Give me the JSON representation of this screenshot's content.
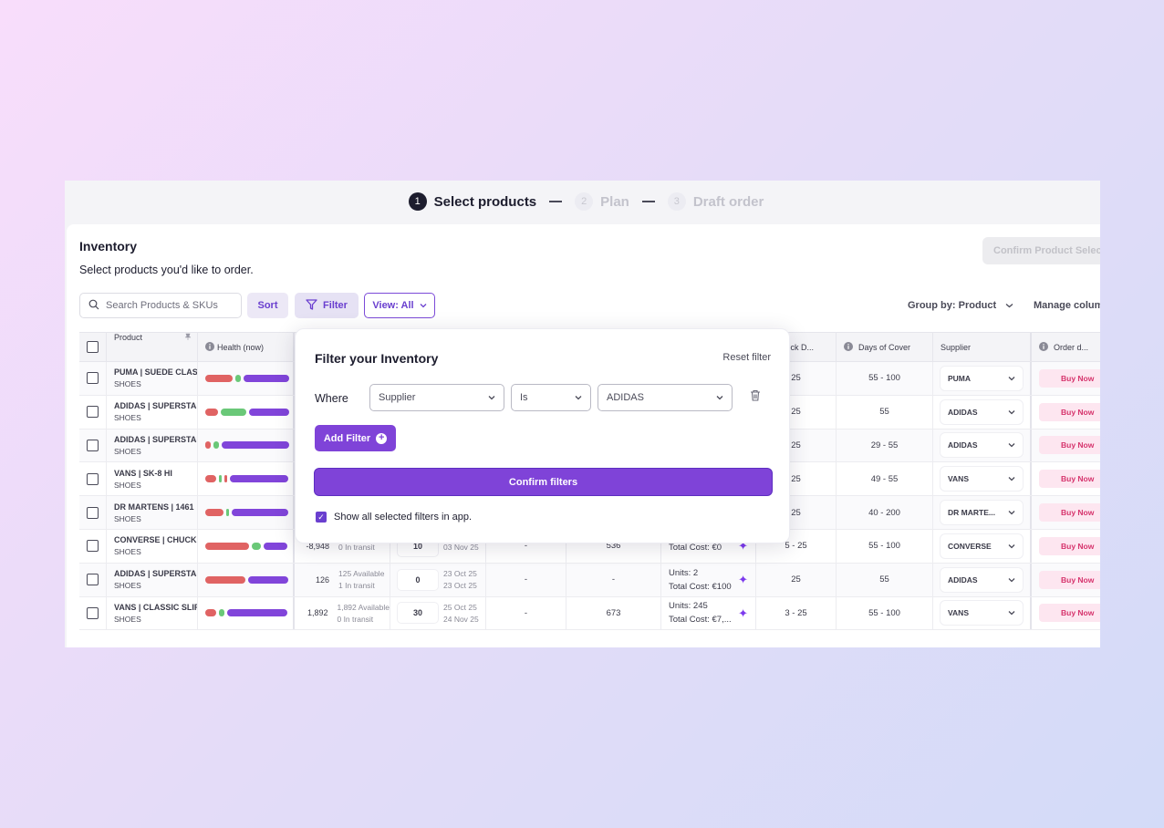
{
  "stepper": {
    "steps": [
      {
        "num": "1",
        "label": "Select products"
      },
      {
        "num": "2",
        "label": "Plan"
      },
      {
        "num": "3",
        "label": "Draft order"
      }
    ]
  },
  "inventory": {
    "title": "Inventory",
    "subtitle": "Select products you'd like to order.",
    "confirm_button": "Confirm Product Selection"
  },
  "toolbar": {
    "search_placeholder": "Search Products & SKUs",
    "sort_label": "Sort",
    "filter_label": "Filter",
    "view_label": "View: All",
    "group_by_label": "Group by: Product",
    "manage_columns_label": "Manage columns"
  },
  "table": {
    "headers": {
      "product": "Product",
      "health": "Health (now)",
      "stock": "Stock D...",
      "days": "Days of Cover",
      "supplier": "Supplier",
      "order": "Order d..."
    },
    "rows": [
      {
        "name": "PUMA | SUEDE CLASSIC",
        "cat": "SHOES",
        "health": [
          [
            30,
            "red"
          ],
          [
            6,
            "green"
          ],
          [
            50,
            "purple"
          ]
        ],
        "avail": "",
        "avail1": "",
        "avail2": "",
        "qty": "",
        "d1": "",
        "d2": "",
        "c5": "",
        "c6": "",
        "units": "",
        "cost": "",
        "stock": "25",
        "days": "55 - 100",
        "supplier": "PUMA",
        "buy": "Buy Now"
      },
      {
        "name": "ADIDAS | SUPERSTAR",
        "cat": "SHOES",
        "health": [
          [
            14,
            "red"
          ],
          [
            28,
            "green"
          ],
          [
            44,
            "purple"
          ]
        ],
        "avail": "",
        "avail1": "",
        "avail2": "",
        "qty": "",
        "d1": "",
        "d2": "",
        "c5": "",
        "c6": "",
        "units": "",
        "cost": "",
        "stock": "25",
        "days": "55",
        "supplier": "ADIDAS",
        "buy": "Buy Now"
      },
      {
        "name": "ADIDAS | SUPERSTAR",
        "cat": "SHOES",
        "health": [
          [
            6,
            "red"
          ],
          [
            6,
            "green"
          ],
          [
            74,
            "purple"
          ]
        ],
        "avail": "",
        "avail1": "",
        "avail2": "",
        "qty": "",
        "d1": "",
        "d2": "",
        "c5": "",
        "c6": "",
        "units": "",
        "cost": "",
        "stock": "25",
        "days": "29 - 55",
        "supplier": "ADIDAS",
        "buy": "Buy Now"
      },
      {
        "name": "VANS | SK-8 HI",
        "cat": "SHOES",
        "health": [
          [
            12,
            "red"
          ],
          [
            3,
            "green"
          ],
          [
            3,
            "red"
          ],
          [
            64,
            "purple"
          ]
        ],
        "avail": "",
        "avail1": "",
        "avail2": "",
        "qty": "",
        "d1": "",
        "d2": "",
        "c5": "",
        "c6": "",
        "units": "",
        "cost": "",
        "stock": "25",
        "days": "49 - 55",
        "supplier": "VANS",
        "buy": "Buy Now"
      },
      {
        "name": "DR MARTENS | 1461",
        "cat": "SHOES",
        "health": [
          [
            20,
            "red"
          ],
          [
            3,
            "green"
          ],
          [
            62,
            "purple"
          ]
        ],
        "avail": "",
        "avail1": "",
        "avail2": "",
        "qty": "",
        "d1": "",
        "d2": "",
        "c5": "",
        "c6": "",
        "units": "",
        "cost": "",
        "stock": "25",
        "days": "40 - 200",
        "supplier": "DR MARTE...",
        "buy": "Buy Now"
      },
      {
        "name": "CONVERSE | CHUCK",
        "cat": "SHOES",
        "health": [
          [
            48,
            "red"
          ],
          [
            10,
            "green"
          ],
          [
            26,
            "purple"
          ]
        ],
        "avail": "-8,948",
        "avail1": "",
        "avail2": "0 In transit",
        "qty": "10",
        "d1": "",
        "d2": "03 Nov 25",
        "c5": "-",
        "c6": "536",
        "units": "",
        "cost": "Total Cost: €0",
        "stock": "5 - 25",
        "days": "55 - 100",
        "supplier": "CONVERSE",
        "buy": "Buy Now"
      },
      {
        "name": "ADIDAS | SUPERSTAR",
        "cat": "SHOES",
        "health": [
          [
            44,
            "red"
          ],
          [
            44,
            "purple"
          ]
        ],
        "avail": "126",
        "avail1": "125 Available",
        "avail2": "1 In transit",
        "qty": "0",
        "d1": "23 Oct 25",
        "d2": "23 Oct 25",
        "c5": "-",
        "c6": "-",
        "units": "Units:   2",
        "cost": "Total Cost: €100",
        "stock": "25",
        "days": "55",
        "supplier": "ADIDAS",
        "buy": "Buy Now"
      },
      {
        "name": "VANS | CLASSIC SLIP-ON",
        "cat": "SHOES",
        "health": [
          [
            12,
            "red"
          ],
          [
            6,
            "green"
          ],
          [
            66,
            "purple"
          ]
        ],
        "avail": "1,892",
        "avail1": "1,892 Available",
        "avail2": "0 In transit",
        "qty": "30",
        "d1": "25 Oct 25",
        "d2": "24 Nov 25",
        "c5": "-",
        "c6": "673",
        "units": "Units:   245",
        "cost": "Total Cost: €7,...",
        "stock": "3 - 25",
        "days": "55 - 100",
        "supplier": "VANS",
        "buy": "Buy Now"
      }
    ]
  },
  "filter_modal": {
    "title": "Filter your Inventory",
    "reset_label": "Reset filter",
    "where_label": "Where",
    "field_value": "Supplier",
    "operator_value": "Is",
    "value_value": "ADIDAS",
    "add_filter_label": "Add Filter",
    "confirm_label": "Confirm filters",
    "show_all_label": "Show all selected filters in app."
  },
  "colors": {
    "accent": "#7f43d8",
    "health_red": "#e06363",
    "health_green": "#6ac878",
    "health_purple": "#8145da",
    "buy_now": "#d6336c"
  }
}
